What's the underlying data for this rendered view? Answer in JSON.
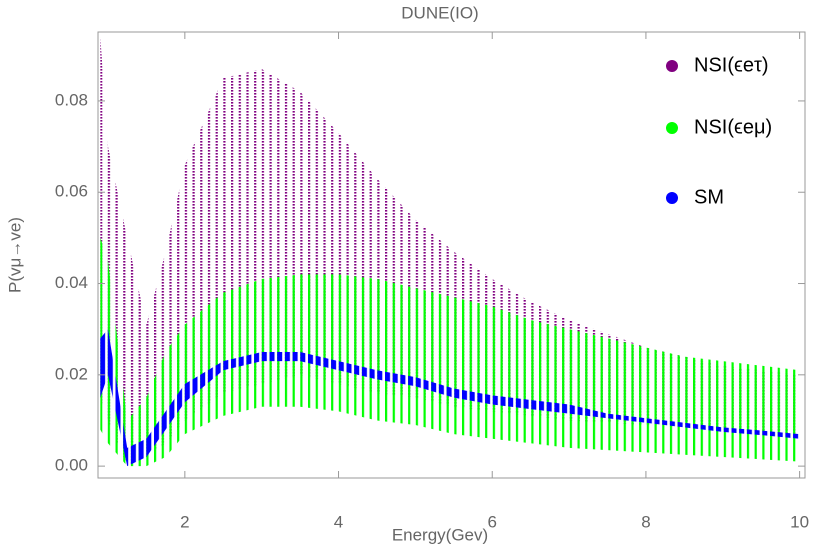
{
  "chart_data": {
    "type": "scatter-band",
    "title": "DUNE(IO)",
    "x_label": "Energy(Gev)",
    "y_label": "P(vμ→ve)",
    "xlim": [
      0.87,
      10.07
    ],
    "ylim": [
      -0.0026,
      0.0951
    ],
    "xticks": [
      2,
      4,
      6,
      8,
      10
    ],
    "yticks": [
      {
        "value": 0,
        "label": "0.00"
      },
      0.02,
      0.04,
      0.06,
      0.08
    ],
    "x": [
      0.9,
      1.0,
      1.25,
      1.5,
      1.75,
      2,
      2.5,
      3,
      3.5,
      4,
      4.5,
      5,
      5.5,
      6,
      6.5,
      7,
      7.5,
      8,
      8.5,
      9,
      9.5,
      10
    ],
    "series": [
      {
        "name": "NSI(ϵeτ)",
        "color": "#800080",
        "high": [
          0.094,
          0.07,
          0.05,
          0.031,
          0.047,
          0.066,
          0.085,
          0.087,
          0.082,
          0.073,
          0.063,
          0.054,
          0.047,
          0.041,
          0.036,
          0.032,
          0.029,
          0.026,
          0.024,
          0.022,
          0.021,
          0.02
        ],
        "low": [
          0.015,
          0.01,
          0.0,
          0.002,
          0.005,
          0.01,
          0.016,
          0.018,
          0.02,
          0.018,
          0.016,
          0.015,
          0.013,
          0.012,
          0.011,
          0.01,
          0.0095,
          0.009,
          0.0085,
          0.008,
          0.0075,
          0.007
        ]
      },
      {
        "name": "NSI(ϵeμ)",
        "color": "#00ff00",
        "high": [
          0.05,
          0.045,
          0.01,
          0.015,
          0.025,
          0.031,
          0.038,
          0.041,
          0.042,
          0.042,
          0.041,
          0.039,
          0.037,
          0.035,
          0.032,
          0.03,
          0.028,
          0.026,
          0.024,
          0.023,
          0.022,
          0.021
        ],
        "low": [
          0.008,
          0.005,
          0.0,
          0.0,
          0.002,
          0.007,
          0.011,
          0.013,
          0.013,
          0.012,
          0.01,
          0.009,
          0.007,
          0.006,
          0.005,
          0.004,
          0.0035,
          0.003,
          0.0025,
          0.002,
          0.0015,
          0.001
        ]
      },
      {
        "name": "SM",
        "color": "#0000ff",
        "high": [
          0.028,
          0.03,
          0.004,
          0.006,
          0.012,
          0.018,
          0.023,
          0.025,
          0.025,
          0.023,
          0.021,
          0.0195,
          0.017,
          0.0155,
          0.0145,
          0.0135,
          0.0115,
          0.0105,
          0.0095,
          0.0085,
          0.0078,
          0.007
        ],
        "low": [
          0.015,
          0.02,
          0.0,
          0.002,
          0.008,
          0.014,
          0.021,
          0.023,
          0.023,
          0.021,
          0.019,
          0.0175,
          0.015,
          0.0135,
          0.0125,
          0.0115,
          0.0105,
          0.0095,
          0.0085,
          0.0075,
          0.0068,
          0.006
        ]
      }
    ]
  }
}
